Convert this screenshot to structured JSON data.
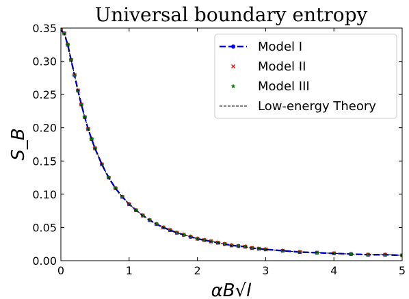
{
  "chart_data": {
    "type": "line",
    "title": "Universal boundary entropy",
    "xlabel": "αB√l",
    "ylabel": "S_B",
    "xlim": [
      0,
      5
    ],
    "ylim": [
      0,
      0.35
    ],
    "xticks": [
      "0",
      "1",
      "2",
      "3",
      "4",
      "5"
    ],
    "yticks": [
      "0.00",
      "0.05",
      "0.10",
      "0.15",
      "0.20",
      "0.25",
      "0.30",
      "0.35"
    ],
    "grid": false,
    "legend_position": "top-right",
    "series": [
      {
        "name": "Model I",
        "style": "dashed-line-circle-markers",
        "color": "#0000ff",
        "x": [
          0,
          0.05,
          0.1,
          0.15,
          0.2,
          0.25,
          0.3,
          0.35,
          0.4,
          0.45,
          0.5,
          0.6,
          0.7,
          0.8,
          0.9,
          1.0,
          1.1,
          1.2,
          1.3,
          1.4,
          1.5,
          1.6,
          1.7,
          1.8,
          1.9,
          2.0,
          2.1,
          2.2,
          2.3,
          2.4,
          2.5,
          2.6,
          2.7,
          2.8,
          2.9,
          3.0,
          3.25,
          3.5,
          3.75,
          4.0,
          4.25,
          4.5,
          4.75,
          5.0
        ],
        "y": [
          0.347,
          0.342,
          0.325,
          0.302,
          0.279,
          0.256,
          0.235,
          0.216,
          0.198,
          0.183,
          0.169,
          0.145,
          0.125,
          0.109,
          0.096,
          0.085,
          0.076,
          0.068,
          0.061,
          0.055,
          0.05,
          0.046,
          0.042,
          0.039,
          0.036,
          0.033,
          0.031,
          0.029,
          0.027,
          0.025,
          0.023,
          0.022,
          0.021,
          0.019,
          0.018,
          0.017,
          0.015,
          0.013,
          0.012,
          0.011,
          0.01,
          0.009,
          0.009,
          0.008
        ]
      },
      {
        "name": "Model II",
        "style": "x-markers",
        "color": "#ff0000",
        "x": [
          0,
          0.05,
          0.1,
          0.15,
          0.2,
          0.25,
          0.3,
          0.35,
          0.4,
          0.45,
          0.5,
          0.6,
          0.7,
          0.8,
          0.9,
          1.0,
          1.1,
          1.2,
          1.3,
          1.4,
          1.5,
          1.6,
          1.7,
          1.8,
          1.9,
          2.0,
          2.1,
          2.2,
          2.3,
          2.4,
          2.5,
          2.6,
          2.7,
          2.8,
          2.9,
          3.0,
          3.25,
          3.5,
          3.75,
          4.0,
          4.25,
          4.5,
          4.75,
          5.0
        ],
        "y": [
          0.347,
          0.342,
          0.325,
          0.302,
          0.279,
          0.256,
          0.235,
          0.216,
          0.198,
          0.183,
          0.169,
          0.145,
          0.125,
          0.109,
          0.096,
          0.085,
          0.076,
          0.068,
          0.061,
          0.055,
          0.05,
          0.046,
          0.042,
          0.039,
          0.036,
          0.033,
          0.031,
          0.029,
          0.027,
          0.025,
          0.023,
          0.022,
          0.021,
          0.019,
          0.018,
          0.017,
          0.015,
          0.013,
          0.012,
          0.011,
          0.01,
          0.009,
          0.009,
          0.008
        ]
      },
      {
        "name": "Model III",
        "style": "star-markers",
        "color": "#008000",
        "x": [
          0,
          0.05,
          0.1,
          0.15,
          0.2,
          0.25,
          0.3,
          0.35,
          0.4,
          0.45,
          0.5,
          0.6,
          0.7,
          0.8,
          0.9,
          1.0,
          1.1,
          1.2,
          1.3,
          1.4,
          1.5,
          1.6,
          1.7,
          1.8,
          1.9,
          2.0,
          2.1,
          2.2,
          2.3,
          2.4,
          2.5,
          2.6,
          2.7,
          2.8,
          2.9,
          3.0,
          3.25,
          3.5,
          3.75,
          4.0,
          4.25,
          4.5,
          4.75,
          5.0
        ],
        "y": [
          0.347,
          0.342,
          0.325,
          0.302,
          0.279,
          0.256,
          0.235,
          0.216,
          0.198,
          0.183,
          0.169,
          0.145,
          0.125,
          0.109,
          0.096,
          0.085,
          0.076,
          0.068,
          0.061,
          0.055,
          0.05,
          0.046,
          0.042,
          0.039,
          0.036,
          0.033,
          0.031,
          0.029,
          0.027,
          0.025,
          0.023,
          0.022,
          0.021,
          0.019,
          0.018,
          0.017,
          0.015,
          0.013,
          0.012,
          0.011,
          0.01,
          0.009,
          0.009,
          0.008
        ]
      },
      {
        "name": "Low-energy Theory",
        "style": "thin-dashed-line",
        "color": "#000000",
        "x": [
          0,
          0.05,
          0.1,
          0.15,
          0.2,
          0.25,
          0.3,
          0.35,
          0.4,
          0.45,
          0.5,
          0.6,
          0.7,
          0.8,
          0.9,
          1.0,
          1.1,
          1.2,
          1.3,
          1.4,
          1.5,
          1.6,
          1.7,
          1.8,
          1.9,
          2.0,
          2.1,
          2.2,
          2.3,
          2.4,
          2.5,
          2.6,
          2.7,
          2.8,
          2.9,
          3.0,
          3.25,
          3.5,
          3.75,
          4.0,
          4.25,
          4.5,
          4.75,
          5.0
        ],
        "y": [
          0.347,
          0.342,
          0.325,
          0.302,
          0.279,
          0.256,
          0.235,
          0.216,
          0.198,
          0.183,
          0.169,
          0.145,
          0.125,
          0.109,
          0.096,
          0.085,
          0.076,
          0.068,
          0.061,
          0.055,
          0.05,
          0.046,
          0.042,
          0.039,
          0.036,
          0.033,
          0.031,
          0.029,
          0.027,
          0.025,
          0.023,
          0.022,
          0.021,
          0.019,
          0.018,
          0.017,
          0.015,
          0.013,
          0.012,
          0.011,
          0.01,
          0.009,
          0.009,
          0.008
        ]
      }
    ]
  }
}
